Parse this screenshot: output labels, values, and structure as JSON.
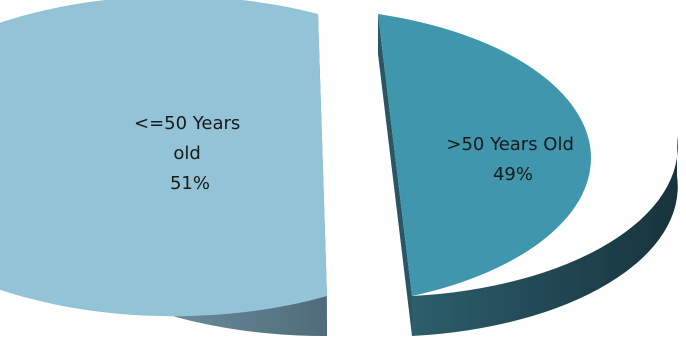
{
  "chart_data": {
    "type": "pie",
    "style": "3d-exploded",
    "slices": [
      {
        "label_lines": [
          "<=50 Years",
          "old"
        ],
        "percent_label": "51%",
        "value": 51,
        "color": "#93c3d6",
        "side_color": "#6f93a5"
      },
      {
        "label_lines": [
          ">50 Years Old"
        ],
        "percent_label": "49%",
        "value": 49,
        "color": "#3f96ad",
        "side_color": "#24505e"
      }
    ]
  }
}
